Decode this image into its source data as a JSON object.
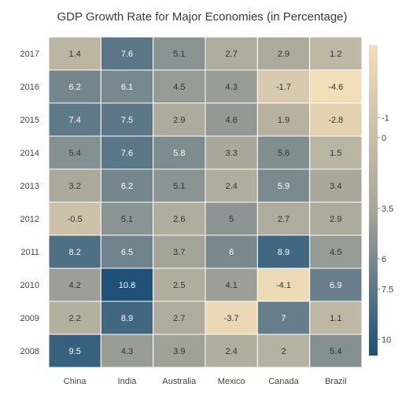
{
  "chart_data": {
    "type": "heatmap",
    "title": "GDP Growth Rate for Major Economies (in Percentage)",
    "x_categories": [
      "China",
      "India",
      "Australia",
      "Mexico",
      "Canada",
      "Brazil"
    ],
    "y_categories": [
      "2017",
      "2016",
      "2015",
      "2014",
      "2013",
      "2012",
      "2011",
      "2010",
      "2009",
      "2008"
    ],
    "values": [
      [
        1.4,
        7.6,
        5.1,
        2.7,
        2.9,
        1.2
      ],
      [
        6.2,
        6.1,
        4.5,
        4.3,
        -1.7,
        -4.6
      ],
      [
        7.4,
        7.5,
        2.9,
        4.6,
        1.9,
        -2.8
      ],
      [
        5.4,
        7.6,
        5.8,
        3.3,
        5.6,
        1.5
      ],
      [
        3.2,
        6.2,
        5.1,
        2.4,
        5.9,
        3.4
      ],
      [
        -0.5,
        5.1,
        2.6,
        5,
        2.7,
        2.9
      ],
      [
        8.2,
        6.5,
        3.7,
        6,
        8.9,
        4.5
      ],
      [
        4.2,
        10.8,
        2.5,
        4.1,
        -4.1,
        6.9
      ],
      [
        2.2,
        8.9,
        2.7,
        -3.7,
        7,
        1.1
      ],
      [
        9.5,
        4.3,
        3.9,
        2.4,
        2,
        5.4
      ]
    ],
    "legend": {
      "placement": "right",
      "ticks": [
        "-1",
        "0",
        "3.5",
        "6",
        "7.5",
        "10"
      ],
      "tick_values": [
        -1,
        0,
        3.5,
        6,
        7.5,
        10
      ],
      "range": [
        -4.6,
        10.8
      ]
    },
    "colors": {
      "low": "#f2deb9",
      "mid": "#a8a79a",
      "high": "#1e5078",
      "light_text": "#ffffff",
      "dark_text": "#333333",
      "cell_border": "#ffffff"
    }
  }
}
